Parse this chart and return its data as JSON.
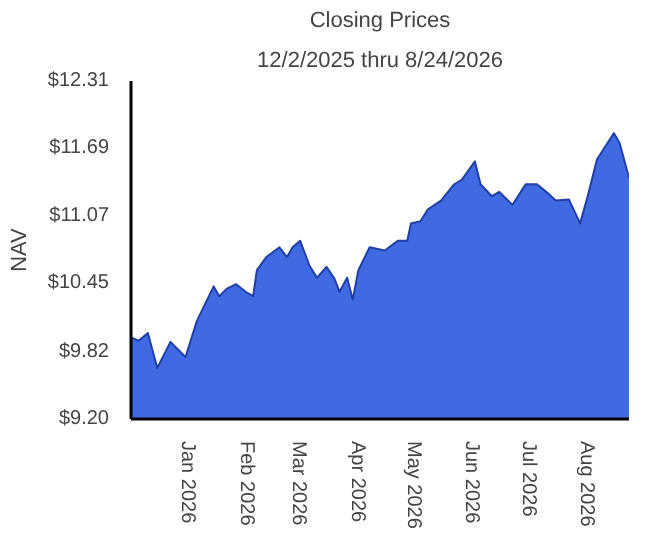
{
  "chart_data": {
    "type": "area",
    "title": "Closing Prices",
    "subtitle": "12/2/2025 thru 8/24/2026",
    "ylabel": "NAV",
    "x": [
      "2025-12-02",
      "2025-12-06",
      "2025-12-11",
      "2025-12-16",
      "2025-12-23",
      "2025-12-31",
      "2026-01-06",
      "2026-01-15",
      "2026-01-18",
      "2026-01-22",
      "2026-01-27",
      "2026-02-01",
      "2026-02-05",
      "2026-02-07",
      "2026-02-12",
      "2026-02-19",
      "2026-02-23",
      "2026-02-26",
      "2026-03-02",
      "2026-03-07",
      "2026-03-11",
      "2026-03-16",
      "2026-03-20",
      "2026-03-23",
      "2026-03-27",
      "2026-03-30",
      "2026-04-02",
      "2026-04-08",
      "2026-04-16",
      "2026-04-23",
      "2026-04-28",
      "2026-04-30",
      "2026-05-05",
      "2026-05-09",
      "2026-05-16",
      "2026-05-23",
      "2026-05-27",
      "2026-06-03",
      "2026-06-06",
      "2026-06-12",
      "2026-06-16",
      "2026-06-23",
      "2026-06-30",
      "2026-07-06",
      "2026-07-11",
      "2026-07-16",
      "2026-07-23",
      "2026-07-29",
      "2026-08-02",
      "2026-08-07",
      "2026-08-16",
      "2026-08-19",
      "2026-08-24"
    ],
    "series": [
      {
        "color": "#4169e1",
        "values": [
          9.95,
          9.92,
          9.99,
          9.67,
          9.91,
          9.77,
          10.1,
          10.42,
          10.33,
          10.4,
          10.44,
          10.37,
          10.33,
          10.57,
          10.69,
          10.78,
          10.69,
          10.78,
          10.84,
          10.61,
          10.5,
          10.6,
          10.5,
          10.37,
          10.5,
          10.3,
          10.57,
          10.78,
          10.75,
          10.84,
          10.84,
          11.0,
          11.02,
          11.13,
          11.21,
          11.36,
          11.4,
          11.57,
          11.36,
          11.25,
          11.29,
          11.17,
          11.36,
          11.36,
          11.29,
          11.21,
          11.22,
          11.0,
          11.25,
          11.59,
          11.83,
          11.74,
          11.42
        ]
      }
    ],
    "xlim": [
      "2025-12-02",
      "2026-08-24"
    ],
    "xticks": [
      {
        "value": "2026-01-01",
        "label": "Jan 2026"
      },
      {
        "value": "2026-02-01",
        "label": "Feb 2026"
      },
      {
        "value": "2026-03-01",
        "label": "Mar 2026"
      },
      {
        "value": "2026-04-01",
        "label": "Apr 2026"
      },
      {
        "value": "2026-05-01",
        "label": "May 2026"
      },
      {
        "value": "2026-06-01",
        "label": "Jun 2026"
      },
      {
        "value": "2026-07-01",
        "label": "Jul 2026"
      },
      {
        "value": "2026-08-01",
        "label": "Aug 2026"
      }
    ],
    "ylim": [
      9.2,
      12.31
    ],
    "yticks": [
      {
        "value": 9.2,
        "label": "$9.20"
      },
      {
        "value": 9.82,
        "label": "$9.82"
      },
      {
        "value": 10.45,
        "label": "$10.45"
      },
      {
        "value": 11.07,
        "label": "$11.07"
      },
      {
        "value": 11.69,
        "label": "$11.69"
      },
      {
        "value": 12.31,
        "label": "$12.31"
      }
    ],
    "grid": false
  }
}
